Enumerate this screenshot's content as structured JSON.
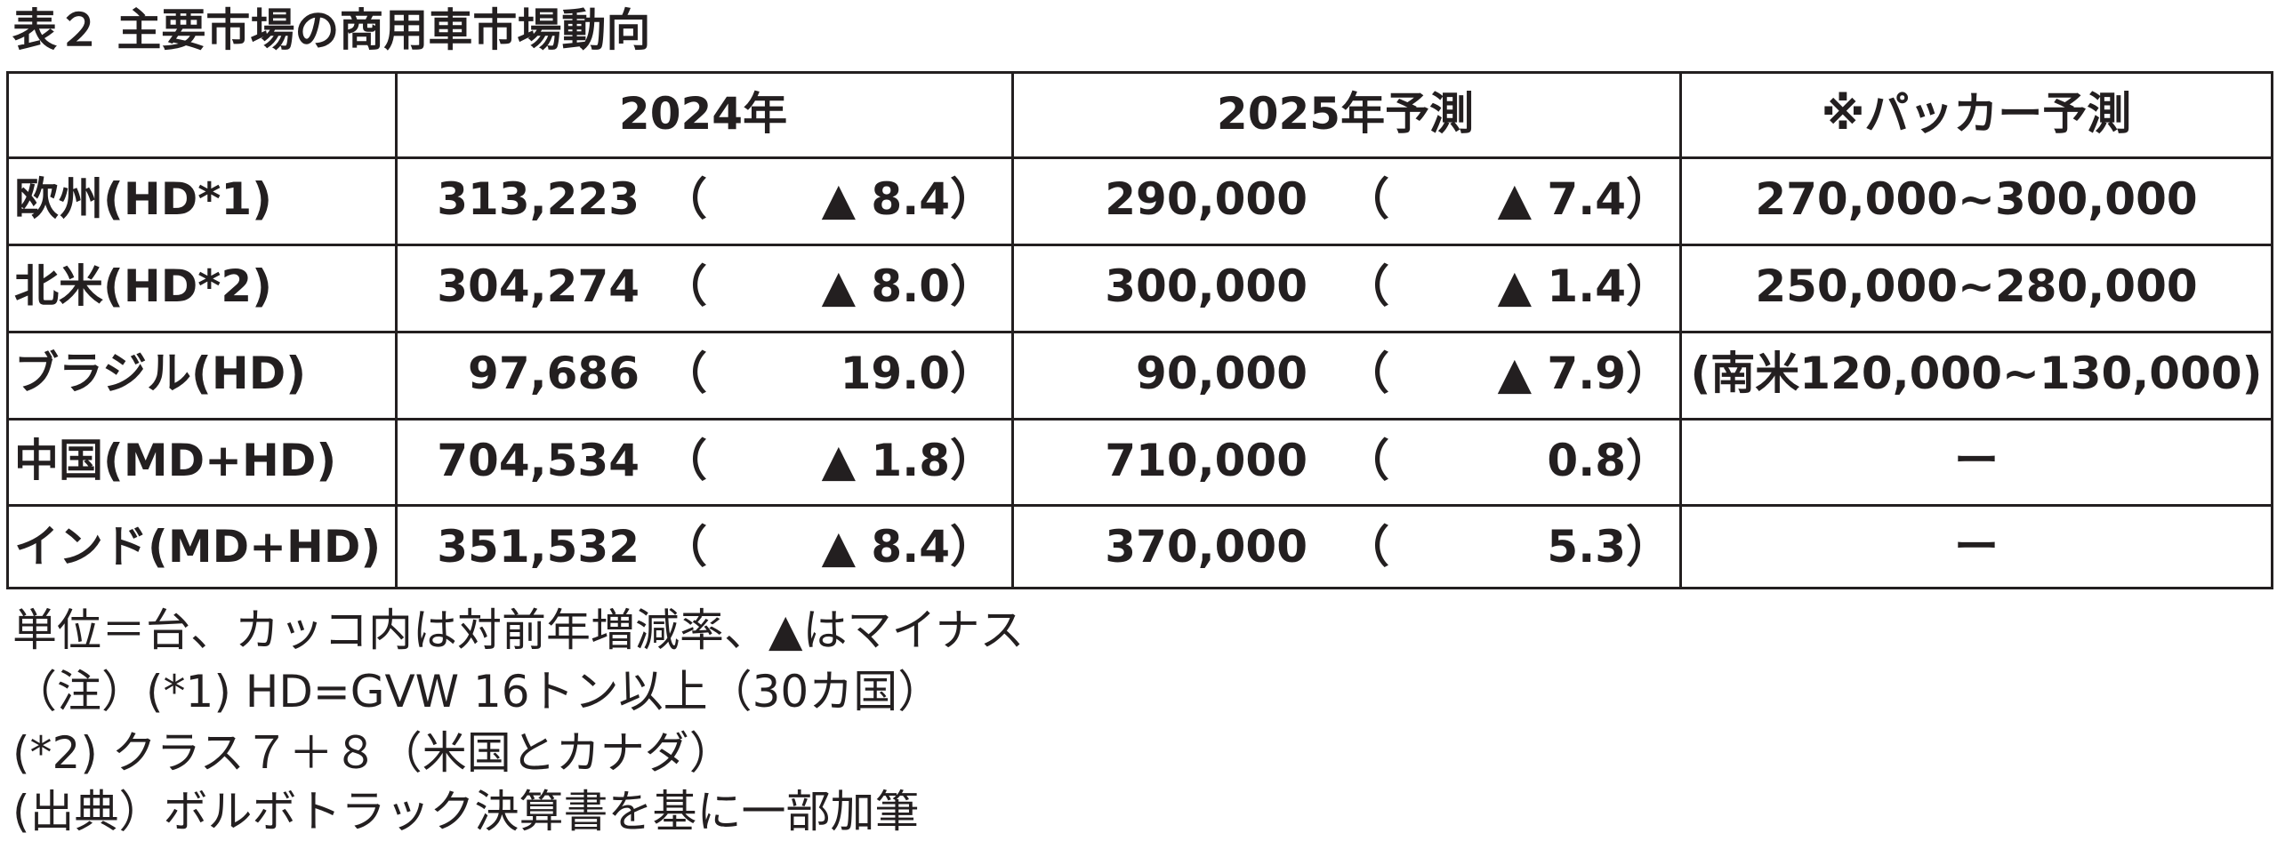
{
  "title": "表２ 主要市場の商用車市場動向",
  "table": {
    "headers": [
      "",
      "2024年",
      "2025年予測",
      "※パッカー予測"
    ],
    "paren": [
      "（",
      "）"
    ],
    "rows": [
      [
        "欧州(HD*1)",
        "313,223",
        "▲ 8.4",
        "290,000",
        "▲ 7.4",
        "270,000~300,000"
      ],
      [
        "北米(HD*2)",
        "304,274",
        "▲ 8.0",
        "300,000",
        "▲ 1.4",
        "250,000~280,000"
      ],
      [
        "ブラジル(HD)",
        "97,686",
        "19.0",
        "90,000",
        "▲ 7.9",
        "(南米120,000~130,000)"
      ],
      [
        "中国(MD+HD)",
        "704,534",
        "▲ 1.8",
        "710,000",
        "0.8",
        "ー"
      ],
      [
        "インド(MD+HD)",
        "351,532",
        "▲ 8.4",
        "370,000",
        "5.3",
        "ー"
      ]
    ]
  },
  "notes": [
    "単位＝台、カッコ内は対前年増減率、▲はマイナス",
    "（注）(*1) HD=GVW 16トン以上（30カ国）",
    "(*2) クラス７＋８（米国とカナダ）",
    "(出典）ボルボトラック決算書を基に一部加筆"
  ]
}
